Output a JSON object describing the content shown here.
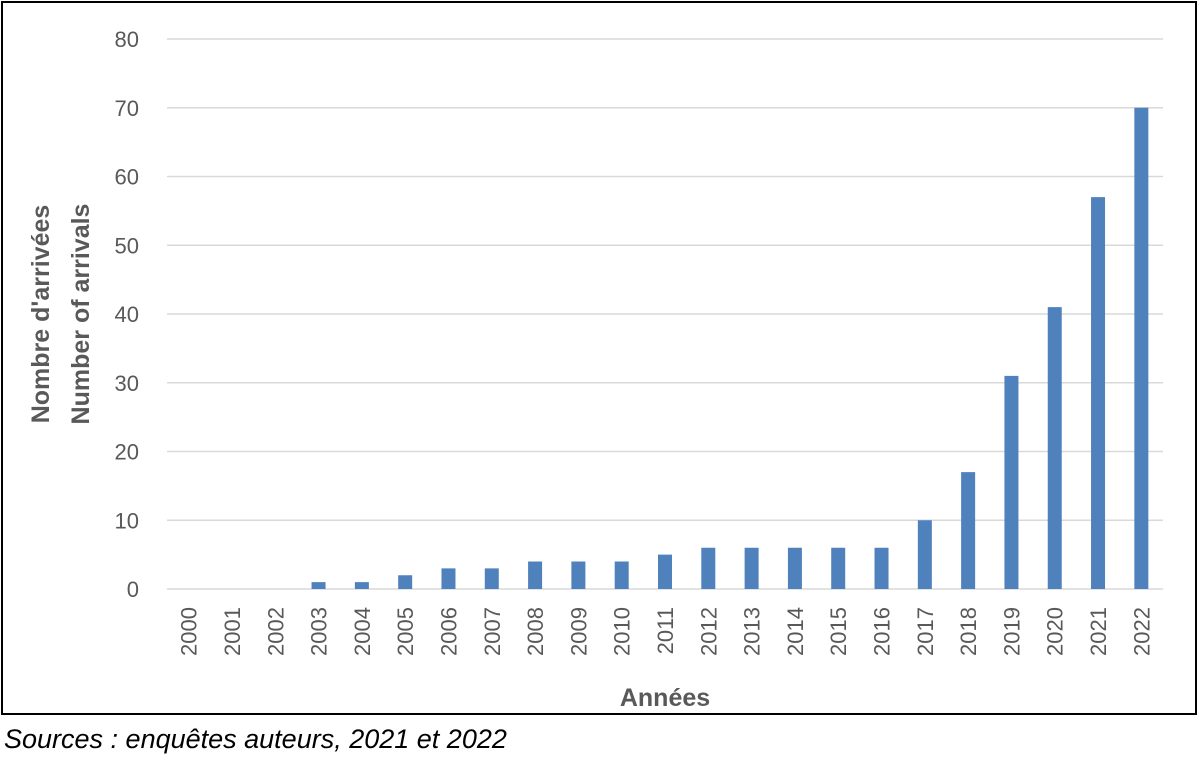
{
  "chart_data": {
    "type": "bar",
    "title": "",
    "xlabel": "Années",
    "ylabel": [
      "Nombre d'arrivées",
      "Number of arrivals"
    ],
    "categories": [
      "2000",
      "2001",
      "2002",
      "2003",
      "2004",
      "2005",
      "2006",
      "2007",
      "2008",
      "2009",
      "2010",
      "2011",
      "2012",
      "2013",
      "2014",
      "2015",
      "2016",
      "2017",
      "2018",
      "2019",
      "2020",
      "2021",
      "2022"
    ],
    "values": [
      0,
      0,
      0,
      1,
      1,
      2,
      3,
      3,
      4,
      4,
      4,
      5,
      6,
      6,
      6,
      6,
      6,
      10,
      17,
      31,
      41,
      57,
      70
    ],
    "ylim": [
      0,
      80
    ],
    "yticks": [
      0,
      10,
      20,
      30,
      40,
      50,
      60,
      70,
      80
    ],
    "grid": true,
    "legend": "none",
    "colors": {
      "bar": "#4f81bd",
      "grid": "#d9d9d9",
      "text": "#595959"
    }
  },
  "source_note": "Sources : enquêtes auteurs, 2021 et 2022"
}
